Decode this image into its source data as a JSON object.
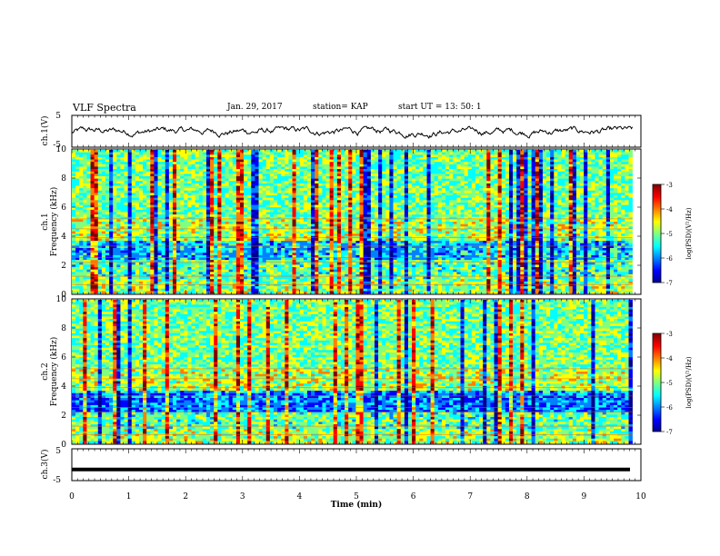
{
  "header": {
    "title": "VLF Spectra",
    "date": "Jan. 29, 2017",
    "station": "station= KAP",
    "start": "start  UT =   13: 50: 1"
  },
  "colors": {
    "jet": [
      "#00008f",
      "#0000ff",
      "#0080ff",
      "#00ffff",
      "#80ff80",
      "#ffff00",
      "#ff8000",
      "#ff0000",
      "#800000"
    ],
    "trace": "#000000"
  },
  "chart_data": [
    {
      "type": "line",
      "panel": "ch1-waveform",
      "ylabel": "ch.1(V)",
      "ylim": [
        -5,
        5
      ],
      "yticks": [
        "5",
        "-5"
      ],
      "xlim": [
        0,
        10
      ],
      "series": [
        {
          "values_range": [
            -2.5,
            1.5
          ],
          "baseline": 0
        }
      ]
    },
    {
      "type": "heatmap",
      "panel": "ch1-spectrogram",
      "ylabel": "ch.1",
      "ylabel2": "Frequency  (kHz)",
      "ylim": [
        0,
        10
      ],
      "yticks": [
        "0",
        "2",
        "4",
        "6",
        "8",
        "10"
      ],
      "xlim": [
        0,
        9.85
      ],
      "colorbar": {
        "label": "log(PSD)(V²/Hz)",
        "range": [
          -7,
          -3
        ],
        "ticks": [
          "-3",
          "-4",
          "-5",
          "-6",
          "-7"
        ]
      }
    },
    {
      "type": "heatmap",
      "panel": "ch2-spectrogram",
      "ylabel": "ch.2",
      "ylabel2": "Frequency  (kHz)",
      "ylim": [
        0,
        10
      ],
      "yticks": [
        "0",
        "2",
        "4",
        "6",
        "8",
        "10"
      ],
      "xlim": [
        0,
        9.85
      ],
      "colorbar": {
        "label": "log(PSD)(V²/Hz)",
        "range": [
          -7,
          -3
        ],
        "ticks": [
          "-3",
          "-4",
          "-5",
          "-6",
          "-7"
        ]
      }
    },
    {
      "type": "line",
      "panel": "ch3-waveform",
      "ylabel": "ch.3(V)",
      "ylim": [
        -5,
        5
      ],
      "yticks": [
        "5",
        "-5"
      ],
      "xlim": [
        0,
        10
      ],
      "series": [
        {
          "constant": -1.5
        }
      ]
    }
  ],
  "xaxis": {
    "label": "Time  (min)",
    "ticks": [
      "0",
      "1",
      "2",
      "3",
      "4",
      "5",
      "6",
      "7",
      "8",
      "9",
      "10"
    ],
    "range": [
      0,
      10
    ]
  }
}
